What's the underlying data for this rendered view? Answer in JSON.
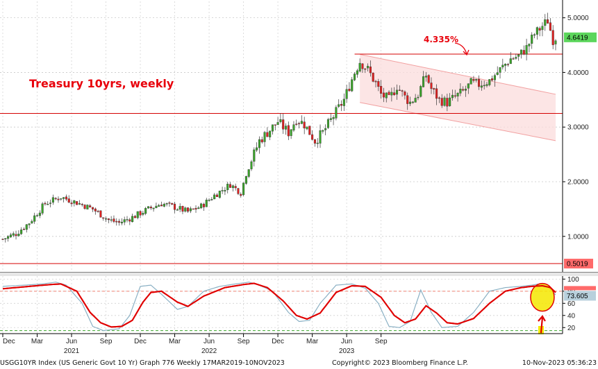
{
  "chart_data": [
    {
      "type": "candlestick",
      "title": "Treasury 10yrs, weekly",
      "annotation": "4.335%",
      "y_ticks": [
        "1.0000",
        "2.0000",
        "3.0000",
        "4.0000",
        "5.0000"
      ],
      "ylim": [
        0.35,
        5.3
      ],
      "last_value": "4.6419",
      "low_value": "0.5019",
      "resistance_level": 4.335,
      "support_level": 3.25,
      "low_level": 0.5019,
      "trend_channel": {
        "upper": [
          [
            0,
            4.33
          ],
          [
            60,
            3.6
          ]
        ],
        "lower": [
          [
            0,
            3.45
          ],
          [
            60,
            2.75
          ]
        ]
      },
      "anchor_points": [
        [
          0,
          0.95
        ],
        [
          5,
          1.05
        ],
        [
          10,
          1.25
        ],
        [
          16,
          1.6
        ],
        [
          22,
          1.72
        ],
        [
          29,
          1.6
        ],
        [
          34,
          1.5
        ],
        [
          40,
          1.3
        ],
        [
          44,
          1.25
        ],
        [
          49,
          1.35
        ],
        [
          55,
          1.5
        ],
        [
          60,
          1.6
        ],
        [
          64,
          1.55
        ],
        [
          70,
          1.45
        ],
        [
          75,
          1.55
        ],
        [
          80,
          1.75
        ],
        [
          86,
          1.95
        ],
        [
          90,
          1.8
        ],
        [
          92,
          2.15
        ],
        [
          97,
          2.75
        ],
        [
          101,
          2.95
        ],
        [
          104,
          3.1
        ],
        [
          108,
          2.9
        ],
        [
          111,
          3.15
        ],
        [
          114,
          3.05
        ],
        [
          118,
          2.75
        ],
        [
          121,
          2.9
        ],
        [
          125,
          3.2
        ],
        [
          129,
          3.5
        ],
        [
          133,
          4.0
        ],
        [
          135,
          4.2
        ],
        [
          138,
          4.05
        ],
        [
          141,
          3.8
        ],
        [
          143,
          3.6
        ],
        [
          146,
          3.5
        ],
        [
          149,
          3.75
        ],
        [
          152,
          3.55
        ],
        [
          154,
          3.45
        ],
        [
          157,
          3.6
        ],
        [
          160,
          3.95
        ],
        [
          162,
          3.7
        ],
        [
          165,
          3.5
        ],
        [
          168,
          3.45
        ],
        [
          171,
          3.55
        ],
        [
          174,
          3.65
        ],
        [
          177,
          3.8
        ],
        [
          180,
          3.78
        ],
        [
          184,
          3.85
        ],
        [
          188,
          4.05
        ],
        [
          192,
          4.25
        ],
        [
          195,
          4.3
        ],
        [
          198,
          4.45
        ],
        [
          201,
          4.7
        ],
        [
          204,
          4.85
        ],
        [
          206,
          4.95
        ],
        [
          208,
          4.6
        ],
        [
          209,
          4.64
        ]
      ],
      "ohlc_generation": {
        "weeks": 210,
        "seed": 7
      }
    },
    {
      "type": "line",
      "name": "stochastic-oscillator",
      "y_ticks": [
        "100",
        "80",
        "60",
        "40",
        "20"
      ],
      "ylim": [
        10,
        105
      ],
      "last_value": "73.605",
      "reference_lines": [
        80,
        15
      ],
      "fast_anchor_points": [
        [
          0,
          88
        ],
        [
          8,
          90
        ],
        [
          15,
          92
        ],
        [
          20,
          95
        ],
        [
          24,
          90
        ],
        [
          30,
          60
        ],
        [
          34,
          22
        ],
        [
          38,
          15
        ],
        [
          44,
          18
        ],
        [
          48,
          40
        ],
        [
          52,
          88
        ],
        [
          56,
          90
        ],
        [
          60,
          75
        ],
        [
          66,
          50
        ],
        [
          70,
          55
        ],
        [
          76,
          80
        ],
        [
          82,
          88
        ],
        [
          88,
          92
        ],
        [
          93,
          95
        ],
        [
          97,
          90
        ],
        [
          102,
          80
        ],
        [
          108,
          45
        ],
        [
          112,
          30
        ],
        [
          116,
          32
        ],
        [
          120,
          60
        ],
        [
          126,
          90
        ],
        [
          132,
          92
        ],
        [
          137,
          85
        ],
        [
          142,
          60
        ],
        [
          146,
          22
        ],
        [
          150,
          20
        ],
        [
          154,
          30
        ],
        [
          158,
          82
        ],
        [
          162,
          45
        ],
        [
          166,
          20
        ],
        [
          172,
          22
        ],
        [
          178,
          45
        ],
        [
          184,
          80
        ],
        [
          190,
          86
        ],
        [
          196,
          88
        ],
        [
          200,
          90
        ],
        [
          203,
          92
        ],
        [
          206,
          88
        ],
        [
          209,
          74
        ]
      ],
      "slow_anchor_points": [
        [
          0,
          84
        ],
        [
          10,
          88
        ],
        [
          18,
          91
        ],
        [
          22,
          92
        ],
        [
          28,
          80
        ],
        [
          33,
          45
        ],
        [
          37,
          28
        ],
        [
          41,
          21
        ],
        [
          45,
          22
        ],
        [
          49,
          32
        ],
        [
          53,
          62
        ],
        [
          56,
          78
        ],
        [
          60,
          80
        ],
        [
          66,
          62
        ],
        [
          70,
          55
        ],
        [
          76,
          72
        ],
        [
          84,
          86
        ],
        [
          91,
          91
        ],
        [
          95,
          93
        ],
        [
          100,
          86
        ],
        [
          106,
          64
        ],
        [
          111,
          40
        ],
        [
          115,
          34
        ],
        [
          120,
          44
        ],
        [
          126,
          78
        ],
        [
          132,
          89
        ],
        [
          137,
          88
        ],
        [
          143,
          70
        ],
        [
          148,
          40
        ],
        [
          152,
          28
        ],
        [
          156,
          34
        ],
        [
          160,
          56
        ],
        [
          164,
          44
        ],
        [
          168,
          28
        ],
        [
          172,
          26
        ],
        [
          178,
          35
        ],
        [
          184,
          60
        ],
        [
          190,
          80
        ],
        [
          196,
          86
        ],
        [
          200,
          88
        ],
        [
          204,
          89
        ],
        [
          207,
          86
        ],
        [
          209,
          78
        ]
      ]
    }
  ],
  "x_axis": {
    "month_labels": [
      {
        "label": "Dec",
        "week": 0
      },
      {
        "label": "Mar",
        "week": 13
      },
      {
        "label": "Jun",
        "week": 26
      },
      {
        "label": "Sep",
        "week": 39
      },
      {
        "label": "Dec",
        "week": 52
      },
      {
        "label": "Mar",
        "week": 65
      },
      {
        "label": "Jun",
        "week": 78
      },
      {
        "label": "Sep",
        "week": 91
      },
      {
        "label": "Dec",
        "week": 104
      },
      {
        "label": "Mar",
        "week": 117
      },
      {
        "label": "Jun",
        "week": 130
      },
      {
        "label": "Sep",
        "week": 143
      }
    ],
    "year_labels": [
      {
        "label": "2021",
        "week": 26
      },
      {
        "label": "2022",
        "week": 78
      },
      {
        "label": "2023",
        "week": 130
      }
    ]
  },
  "footer": {
    "left": "USGG10YR Index (US Generic Govt 10 Yr) Graph 776  Weekly 17MAR2019-10NOV2023",
    "center": "Copyright© 2023 Bloomberg Finance L.P.",
    "right": "10-Nov-2023 05:36:23"
  },
  "colors": {
    "up": "#3aa42a",
    "down": "#e02020",
    "highlight": "#f5e800",
    "stoch_fast": "#8ab0c4",
    "stoch_slow": "#e00000",
    "level_line": "#d40000",
    "channel_fill": "#fbdcdc",
    "badge_green": "#5cd65c",
    "badge_red": "#ff6a6a"
  }
}
